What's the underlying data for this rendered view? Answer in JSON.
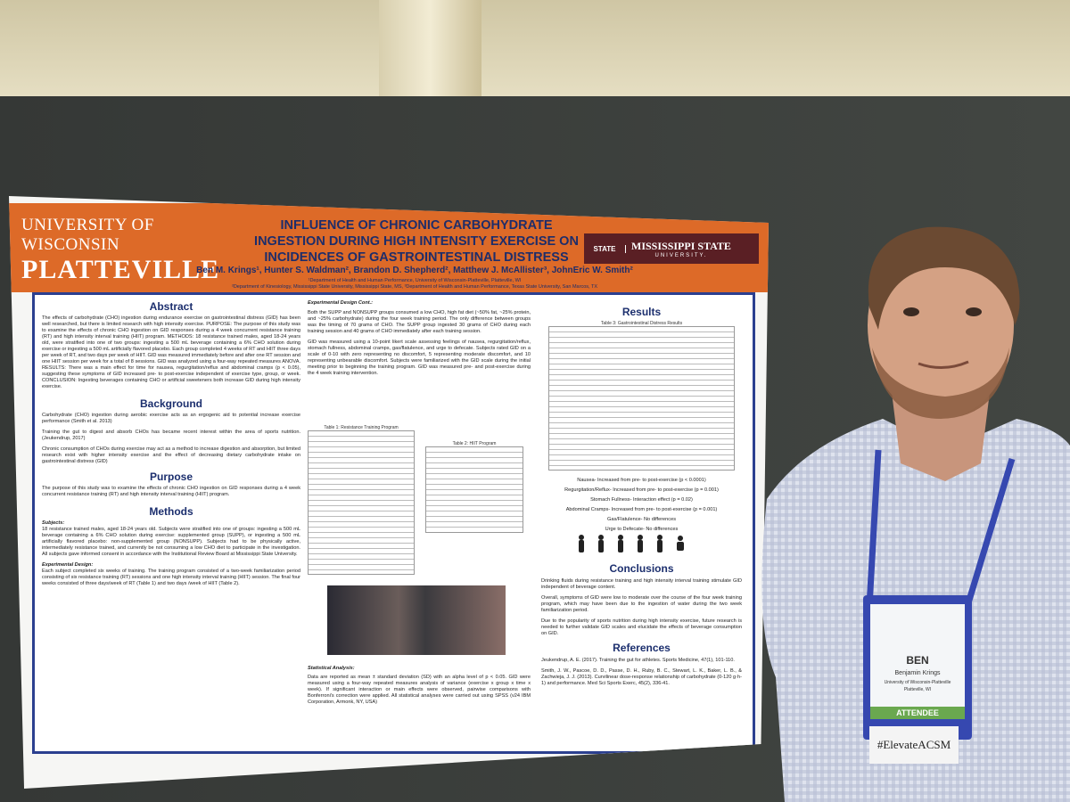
{
  "poster": {
    "university": {
      "line1": "UNIVERSITY OF WISCONSIN",
      "line2": "PLATTEVILLE"
    },
    "title": [
      "INFLUENCE OF CHRONIC CARBOHYDRATE",
      "INGESTION DURING HIGH INTENSITY EXERCISE ON",
      "INCIDENCES OF GASTROINTESTINAL DISTRESS"
    ],
    "authors": "Ben M. Krings¹, Hunter S. Waldman², Brandon D. Shepherd², Matthew J. McAllister³, JohnEric W. Smith²",
    "affiliations": [
      "¹Department of Health and Human Performance, University of Wisconsin-Platteville, Platteville, WI",
      "²Department of Kinesiology, Mississippi State University, Mississippi State, MS, ³Department of Health and Human Performance, Texas State University, San Marcos, TX"
    ],
    "partner": {
      "badge": "STATE",
      "name": "MISSISSIPPI STATE",
      "sub": "UNIVERSITY."
    },
    "abstract": {
      "heading": "Abstract",
      "text": "The effects of carbohydrate (CHO) ingestion during endurance exercise on gastrointestinal distress (GID) has been well researched, but there is limited research with high intensity exercise. PURPOSE: The purpose of this study was to examine the effects of chronic CHO ingestion on GID responses during a 4 week concurrent resistance training (RT) and high intensity interval training (HIIT) program. METHODS: 18 resistance trained males, aged 18-24 years old, were stratified into one of two groups: ingesting a 500 mL beverage containing a 6% CHO solution during exercise or ingesting a 500 mL artificially flavored placebo. Each group completed 4 weeks of RT and HIIT three days per week of RT, and two days per week of HIIT. GID was measured immediately before and after one RT session and one HIIT session per week for a total of 8 sessions. GID was analyzed using a four-way repeated measures ANOVA. RESULTS: There was a main effect for time for nausea, regurgitation/reflux and abdominal cramps (p < 0.05), suggesting these symptoms of GID increased pre- to post-exercise independent of exercise type, group, or week. CONCLUSION: Ingesting beverages containing CHO or artificial sweeteners both increase GID during high intensity exercise."
    },
    "background": {
      "heading": "Background",
      "paragraphs": [
        "Carbohydrate (CHO) ingestion during aerobic exercise acts as an ergogenic aid to potential increase exercise performance (Smith et al. 2013)",
        "Training the gut to digest and absorb CHOs has became recent interest within the area of sports nutrition. (Jeukendrup, 2017)",
        "Chronic consumption of CHOs during exercise may act as a method to increase digestion and absorption, but limited research exist with higher intensity exercise and the effect of decreasing dietary carbohydrate intake on gastrointestinal distress (GID)"
      ]
    },
    "purpose": {
      "heading": "Purpose",
      "text": "The purpose of this study was to examine the effects of chronic CHO ingestion on GID responses during a 4 week concurrent resistance training (RT) and high intensity interval training (HIIT) program."
    },
    "methods": {
      "heading": "Methods",
      "subjects_label": "Subjects:",
      "subjects": "18 resistance trained males, aged 18-24 years old. Subjects were stratified into one of groups: ingesting a 500 mL beverage containing a 6% CHO solution during exercise: supplemented group (SUPP), or ingesting a 500 mL artificially flavored placebo: non-supplemented group (NONSUPP). Subjects had to be physically active, intermediately resistance trained, and currently be not consuming a low CHO diet to participate in the investigation. All subjects gave informed consent in accordance with the Institutional Review Board at Mississippi State University.",
      "design_label": "Experimental Design:",
      "design": "Each subject completed six weeks of training. The training program consisted of a two-week familiarization period consisting of six resistance training (RT) sessions and one high intensity interval training (HIIT) session. The final four weeks consisted of three days/week of RT (Table 1) and two days /week of HIIT (Table 2)."
    },
    "design_cont": {
      "heading": "Experimental Design Cont.:",
      "paragraphs": [
        "Both the SUPP and NONSUPP groups consumed a low CHO, high fat diet (~50% fat, ~25% protein, and ~25% carbohydrate) during the four week training period. The only difference between groups was the timing of 70 grams of CHO. The SUPP group ingested 30 grams of CHO during each training session and 40 grams of CHO immediately after each training session.",
        "GID was measured using a 10-point likert scale assessing feelings of nausea, regurgitation/reflux, stomach fullness, abdominal cramps, gas/flatulence, and urge to defecate. Subjects rated GID on a scale of 0-10 with zero representing no discomfort, 5 representing moderate discomfort, and 10 representing unbearable discomfort. Subjects were familiarized with the GID scale during the initial meeting prior to beginning the training program. GID was measured pre- and post-exercise during the 4 week training intervention."
      ]
    },
    "table1": "Table 1: Resistance Training Program",
    "table2": "Table 2: HIIT Program",
    "statistics": {
      "heading": "Statistical Analysis:",
      "text": "Data are reported as mean ± standard deviation (SD) with an alpha level of p < 0.05. GID were measured using a four-way repeated measures analysis of variance (exercise x group x time x week). If significant interaction or main effects were observed, pairwise comparisons with Bonferroni's correction were applied. All statistical analyses were carried out using SPSS (v24 IBM Corporation, Armonk, NY, USA)"
    },
    "results": {
      "heading": "Results",
      "table": "Table 3: Gastrointestinal Distress Results",
      "findings": [
        "Nausea- Increased from pre- to post-exercise (p < 0.0001)",
        "Regurgitation/Reflux- Increased from pre- to post-exercise (p = 0.001)",
        "Stomach Fullness- Interaction effect (p = 0.02)",
        "Abdominal Cramps- Increased from pre- to post-exercise (p = 0.001)",
        "Gas/Flatulence- No differences",
        "Urge to Defecate- No differences"
      ]
    },
    "conclusions": {
      "heading": "Conclusions",
      "paragraphs": [
        "Drinking fluids during resistance training and high intensity interval training stimulate GID independent of beverage content.",
        "Overall, symptoms of GID were low to moderate over the course of the four week training program, which may have been due to the ingestion of water during the two week familiarization period.",
        "Due to the popularity of sports nutrition during high intensity exercise, future research is needed to further validate GID scales and elucidate the effects of beverage consumption on GID."
      ]
    },
    "references": {
      "heading": "References",
      "items": [
        "Jeukendrup, A. E. (2017). Training the gut for athletes. Sports Medicine, 47(1), 101-110.",
        "Smith, J. W., Pascoe, D. D., Passe, D. H., Ruby, B. C., Stewart, L. K., Baker, L. B., & Zachwieja, J. J. (2013). Curvilinear dose-response relationship of carbohydrate (0-120 g·h-1) and performance. Med Sci Sports Exerc, 45(2), 336-41."
      ]
    }
  },
  "badge": {
    "nickname": "BEN",
    "name": "Benjamin Krings",
    "org": "University of Wisconsin-Platteville",
    "city": "Platteville, WI",
    "type": "ATTENDEE"
  },
  "hashtag": "#ElevateACSM"
}
